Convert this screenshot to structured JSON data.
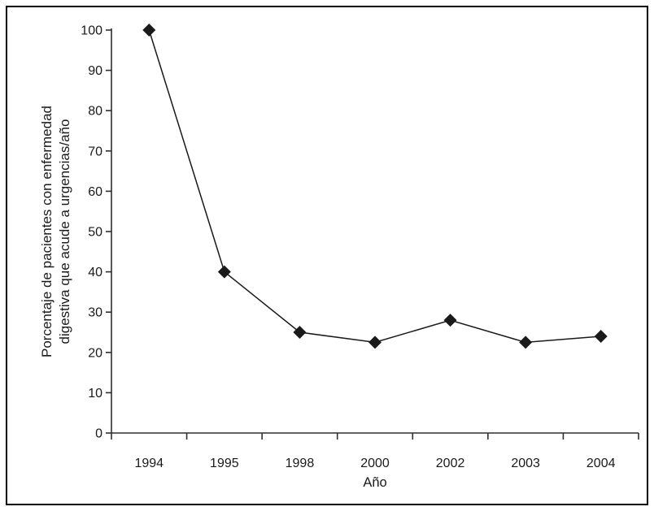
{
  "figure": {
    "background": "#ffffff",
    "border_color": "#000000"
  },
  "chart_data": {
    "type": "line",
    "title": "",
    "xlabel": "Año",
    "ylabel": "Porcentaje de pacientes con enfermedad digestiva que acude a urgencias/año",
    "ylabel_lines": [
      "Porcentaje de pacientes con enfermedad",
      "digestiva que acude a urgencias/año"
    ],
    "categories": [
      "1994",
      "1995",
      "1998",
      "2000",
      "2002",
      "2003",
      "2004"
    ],
    "series": [
      {
        "name": "Porcentaje de pacientes con enfermedad digestiva que acude a urgencias/año",
        "values": [
          100,
          40,
          25,
          22.5,
          28,
          22.5,
          24
        ]
      }
    ],
    "ylim": [
      0,
      100
    ],
    "yticks": [
      0,
      10,
      20,
      30,
      40,
      50,
      60,
      70,
      80,
      90,
      100
    ],
    "grid": false,
    "legend": "none",
    "marker": "diamond",
    "line_color": "#1a1a1a",
    "marker_color": "#1a1a1a",
    "axis_color": "#2e2e2e",
    "text_color": "#1a1a1a"
  }
}
